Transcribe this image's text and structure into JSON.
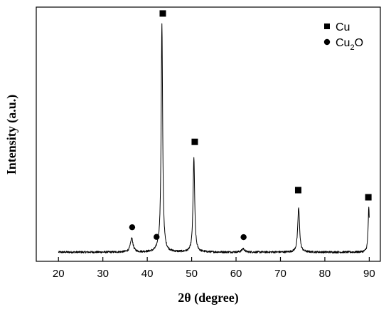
{
  "chart_data": {
    "type": "line",
    "title": "",
    "xlabel": "2θ (degree)",
    "ylabel": "Intensity (a.u.)",
    "xlim": [
      15,
      92.5
    ],
    "ylim": [
      0,
      1
    ],
    "xticks": [
      20,
      30,
      40,
      50,
      60,
      70,
      80,
      90
    ],
    "y_tick_labels_shown": false,
    "grid": false,
    "legend_position": "top-right",
    "legend": [
      {
        "marker": "square",
        "label": "Cu"
      },
      {
        "marker": "circle",
        "label_main": "Cu",
        "label_sub": "2",
        "label_tail": "O"
      }
    ],
    "baseline": 0.036,
    "noise_amplitude": 0.004,
    "peaks": [
      {
        "x": 36.5,
        "height": 0.055,
        "width": 0.35,
        "phase": "Cu2O"
      },
      {
        "x": 42.4,
        "height": 0.012,
        "width": 0.35,
        "phase": "Cu2O"
      },
      {
        "x": 43.3,
        "height": 0.895,
        "width": 0.2,
        "phase": "Cu"
      },
      {
        "x": 50.5,
        "height": 0.37,
        "width": 0.22,
        "phase": "Cu"
      },
      {
        "x": 61.6,
        "height": 0.014,
        "width": 0.35,
        "phase": "Cu2O"
      },
      {
        "x": 74.1,
        "height": 0.175,
        "width": 0.25,
        "phase": "Cu"
      },
      {
        "x": 89.9,
        "height": 0.175,
        "width": 0.18,
        "phase": "Cu"
      }
    ],
    "markers": [
      {
        "type": "square",
        "x": 43.5,
        "y": 0.975
      },
      {
        "type": "square",
        "x": 50.7,
        "y": 0.47
      },
      {
        "type": "square",
        "x": 74.0,
        "y": 0.28
      },
      {
        "type": "square",
        "x": 89.8,
        "y": 0.252
      },
      {
        "type": "circle",
        "x": 36.6,
        "y": 0.134
      },
      {
        "type": "circle",
        "x": 42.1,
        "y": 0.096
      },
      {
        "type": "circle",
        "x": 61.7,
        "y": 0.095
      }
    ],
    "series": [
      {
        "x_start": 20,
        "x_end": 90,
        "color": "#000000"
      }
    ]
  }
}
